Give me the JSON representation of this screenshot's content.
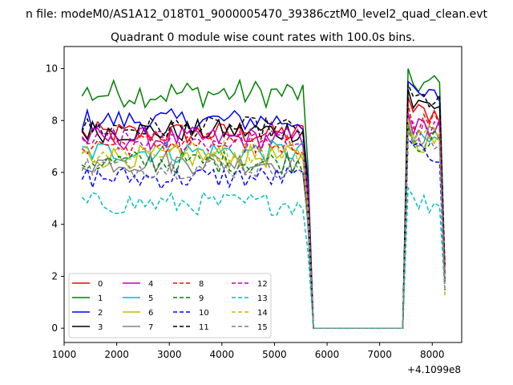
{
  "chart_data": {
    "type": "line",
    "suptitle": "n file: modeM0/AS1A12_018T01_9000005470_39386cztM0_level2_quad_clean.evt",
    "title": "Quadrant 0 module wise count rates with 100.0s bins.",
    "offset_label": "+4.1099e8",
    "xlim": [
      1000,
      8560
    ],
    "ylim": [
      -0.55,
      10.85
    ],
    "xticks": [
      1000,
      2000,
      3000,
      4000,
      5000,
      6000,
      7000,
      8000
    ],
    "yticks": [
      0,
      2,
      4,
      6,
      8,
      10
    ],
    "grid": false,
    "legend": {
      "placement": "lower-left",
      "columns": 4
    },
    "series": [
      {
        "name": "0",
        "color": "#ff0000",
        "dash": false,
        "base": 7.5,
        "high": 8.9
      },
      {
        "name": "1",
        "color": "#008000",
        "dash": false,
        "base": 8.9,
        "high": 10.0
      },
      {
        "name": "2",
        "color": "#0000ff",
        "dash": false,
        "base": 8.0,
        "high": 9.5
      },
      {
        "name": "3",
        "color": "#000000",
        "dash": false,
        "base": 7.6,
        "high": 9.2
      },
      {
        "name": "4",
        "color": "#bf00bf",
        "dash": false,
        "base": 7.3,
        "high": 8.3
      },
      {
        "name": "5",
        "color": "#00bfbf",
        "dash": false,
        "base": 6.8,
        "high": 7.8
      },
      {
        "name": "6",
        "color": "#bfbf00",
        "dash": false,
        "base": 6.6,
        "high": 7.8
      },
      {
        "name": "7",
        "color": "#808080",
        "dash": false,
        "base": 6.4,
        "high": 8.0
      },
      {
        "name": "8",
        "color": "#ff0000",
        "dash": true,
        "base": 7.1,
        "high": 8.6
      },
      {
        "name": "9",
        "color": "#008000",
        "dash": true,
        "base": 6.4,
        "high": 7.8
      },
      {
        "name": "10",
        "color": "#0000ff",
        "dash": true,
        "base": 5.8,
        "high": 7.3
      },
      {
        "name": "11",
        "color": "#000000",
        "dash": true,
        "base": 7.7,
        "high": 9.4
      },
      {
        "name": "12",
        "color": "#bf00bf",
        "dash": true,
        "base": 7.2,
        "high": 8.2
      },
      {
        "name": "13",
        "color": "#00bfbf",
        "dash": true,
        "base": 4.8,
        "high": 5.4
      },
      {
        "name": "14",
        "color": "#bfbf00",
        "dash": true,
        "base": 6.8,
        "high": 8.1
      },
      {
        "name": "15",
        "color": "#808080",
        "dash": true,
        "base": 6.2,
        "high": 7.6
      }
    ]
  }
}
